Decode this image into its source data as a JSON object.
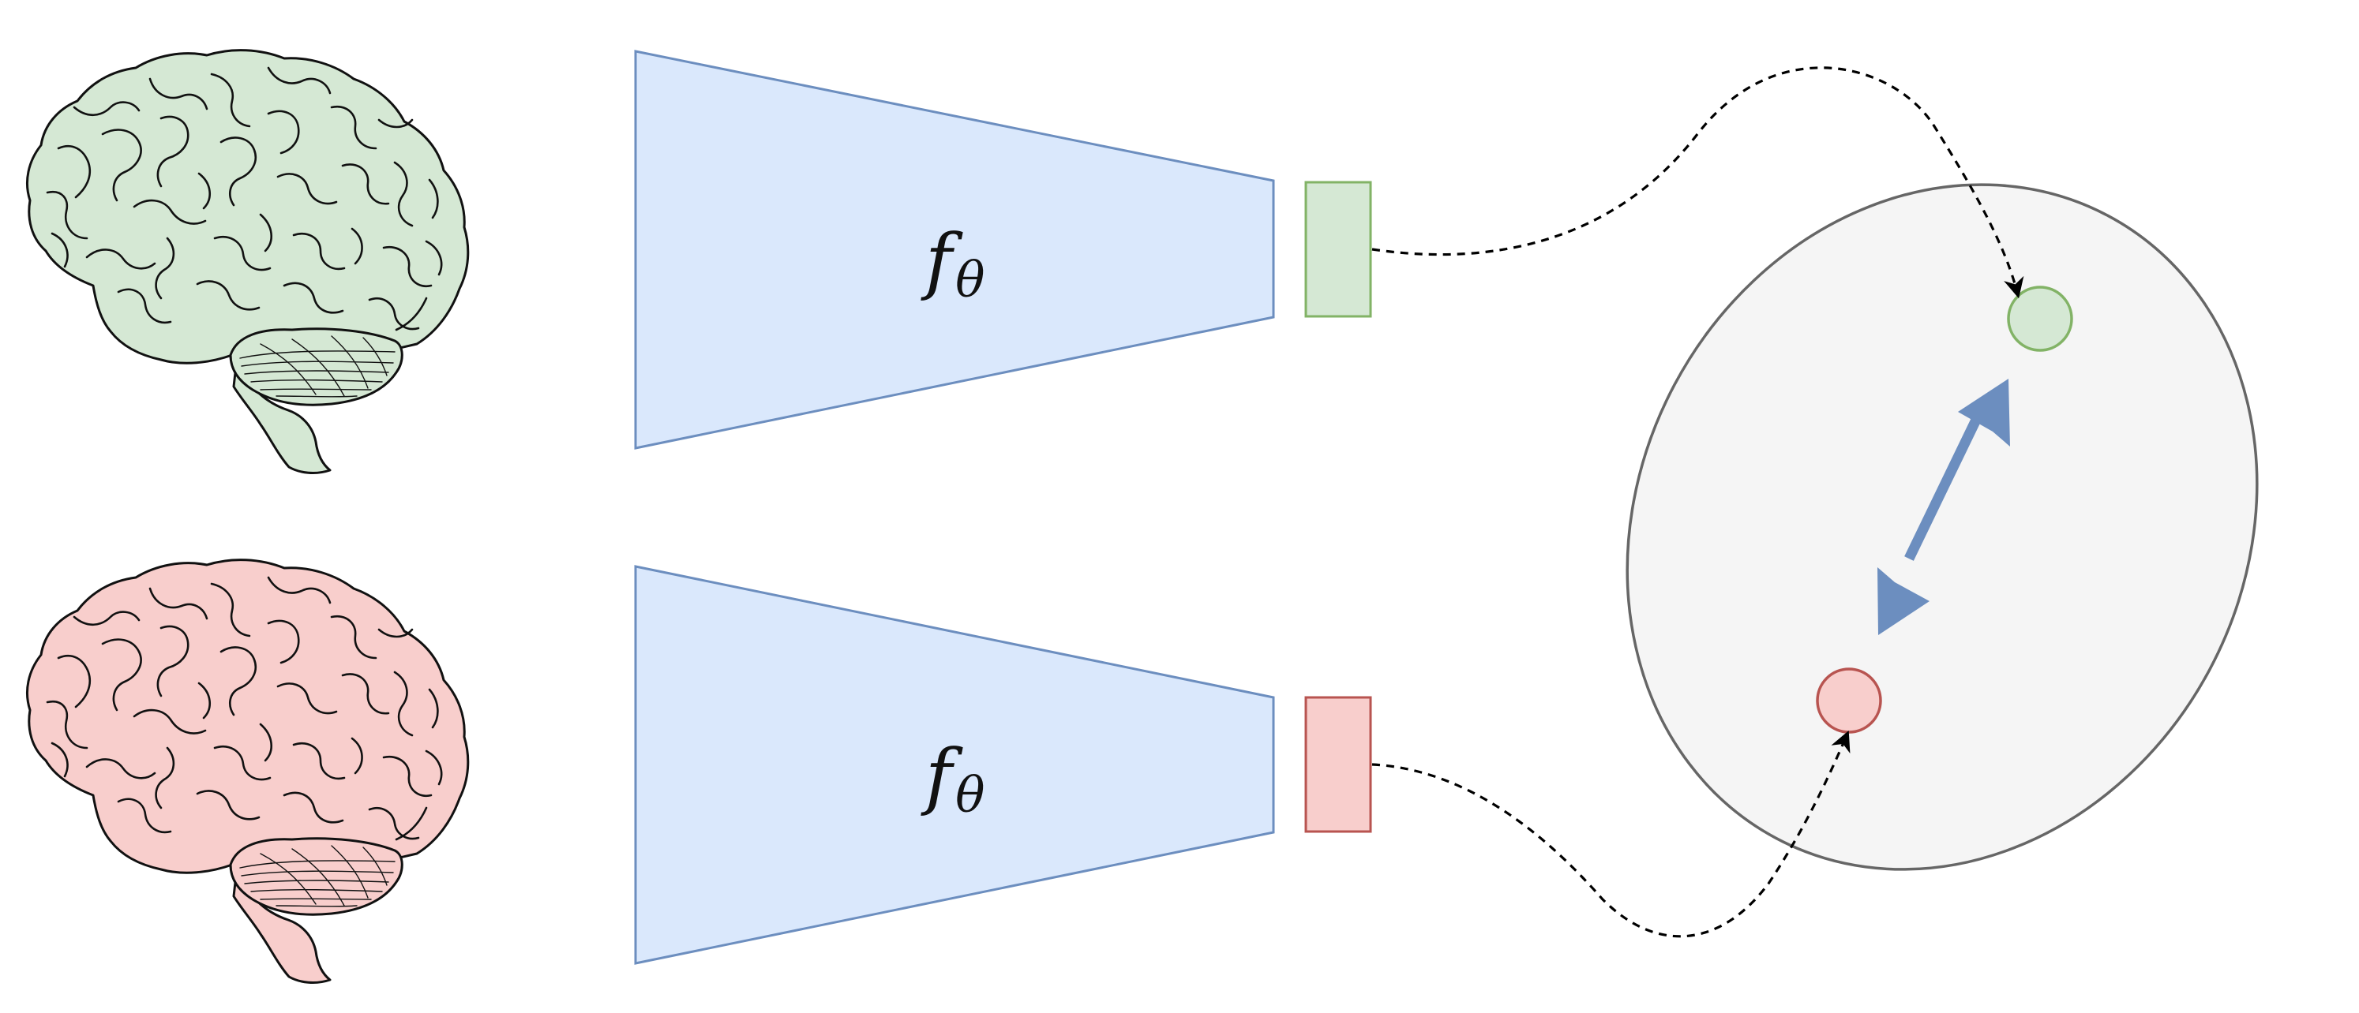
{
  "encoder": {
    "label": "f",
    "subscript": "θ"
  },
  "colors": {
    "encoder_fill": "#dae8fc",
    "encoder_stroke": "#6c8ebf",
    "green_fill": "#d5e8d4",
    "green_stroke": "#82b366",
    "red_fill": "#f8cecc",
    "red_stroke": "#b85450",
    "space_fill": "#f5f5f5",
    "space_stroke": "#666666",
    "arrow": "#6c8ebf"
  }
}
